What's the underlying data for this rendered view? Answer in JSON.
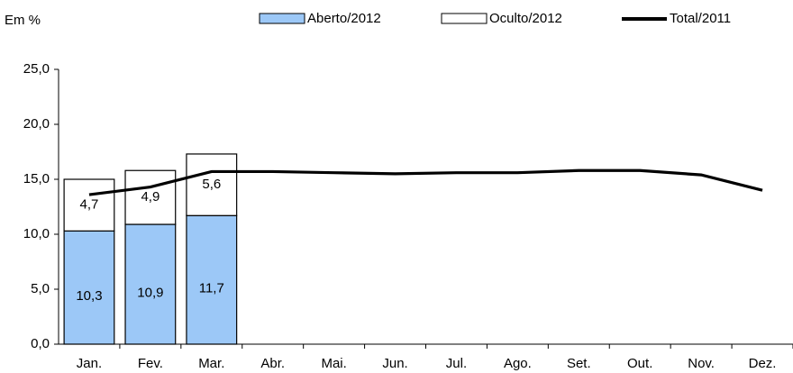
{
  "chart_data": {
    "type": "bar",
    "stacked": true,
    "y_label": "Em %",
    "categories": [
      "Jan.",
      "Fev.",
      "Mar.",
      "Abr.",
      "Mai.",
      "Jun.",
      "Jul.",
      "Ago.",
      "Set.",
      "Out.",
      "Nov.",
      "Dez."
    ],
    "series": [
      {
        "name": "Aberto/2012",
        "type": "bar",
        "color": "#9cc8f7",
        "values": [
          10.3,
          10.9,
          11.7,
          null,
          null,
          null,
          null,
          null,
          null,
          null,
          null,
          null
        ],
        "value_labels": [
          "10,3",
          "10,9",
          "11,7",
          null,
          null,
          null,
          null,
          null,
          null,
          null,
          null,
          null
        ]
      },
      {
        "name": "Oculto/2012",
        "type": "bar",
        "color": "#ffffff",
        "values": [
          4.7,
          4.9,
          5.6,
          null,
          null,
          null,
          null,
          null,
          null,
          null,
          null,
          null
        ],
        "value_labels": [
          "4,7",
          "4,9",
          "5,6",
          null,
          null,
          null,
          null,
          null,
          null,
          null,
          null,
          null
        ]
      },
      {
        "name": "Total/2011",
        "type": "line",
        "color": "#000000",
        "values": [
          13.6,
          14.3,
          15.7,
          15.7,
          15.6,
          15.5,
          15.6,
          15.6,
          15.8,
          15.8,
          15.4,
          14.0
        ]
      }
    ],
    "ylim": [
      0,
      25
    ],
    "yticks": [
      {
        "value": 0,
        "label": "0,0"
      },
      {
        "value": 5,
        "label": "5,0"
      },
      {
        "value": 10,
        "label": "10,0"
      },
      {
        "value": 15,
        "label": "15,0"
      },
      {
        "value": 20,
        "label": "20,0"
      },
      {
        "value": 25,
        "label": "25,0"
      }
    ],
    "grid": false,
    "legend": "top"
  }
}
